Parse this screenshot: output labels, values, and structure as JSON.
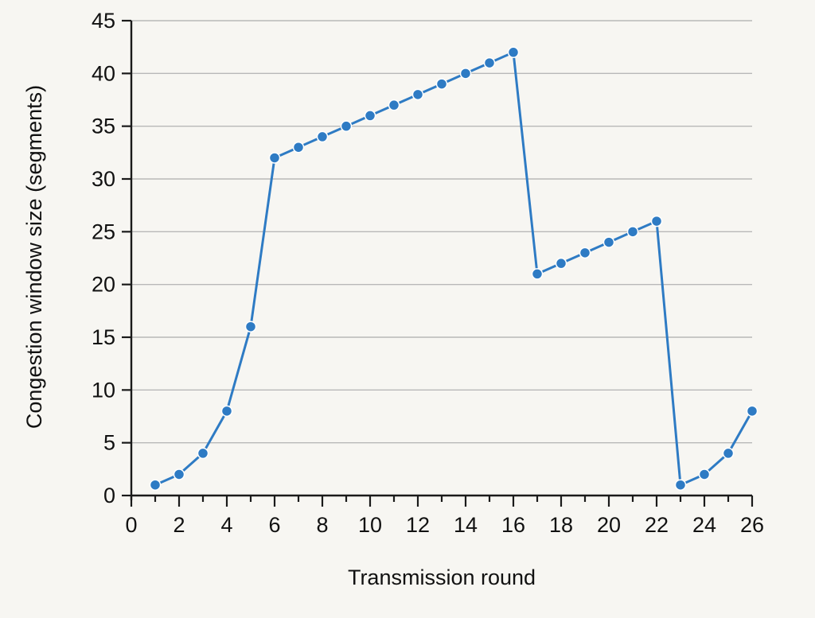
{
  "chart_data": {
    "type": "line",
    "title": "",
    "xlabel": "Transmission round",
    "ylabel": "Congestion window size (segments)",
    "xlim": [
      0,
      26
    ],
    "ylim": [
      0,
      45
    ],
    "x_ticks": [
      0,
      2,
      4,
      6,
      8,
      10,
      12,
      14,
      16,
      18,
      20,
      22,
      24,
      26
    ],
    "y_ticks": [
      0,
      5,
      10,
      15,
      20,
      25,
      30,
      35,
      40,
      45
    ],
    "grid": "horizontal",
    "series": [
      {
        "color": "#2e7bc4",
        "marker": "circle",
        "x": [
          1,
          2,
          3,
          4,
          5,
          6,
          7,
          8,
          9,
          10,
          11,
          12,
          13,
          14,
          15,
          16,
          17,
          18,
          19,
          20,
          21,
          22,
          23,
          24,
          25,
          26
        ],
        "y": [
          1,
          2,
          4,
          8,
          16,
          32,
          33,
          34,
          35,
          36,
          37,
          38,
          39,
          40,
          41,
          42,
          21,
          22,
          23,
          24,
          25,
          26,
          1,
          2,
          4,
          8
        ]
      }
    ]
  }
}
